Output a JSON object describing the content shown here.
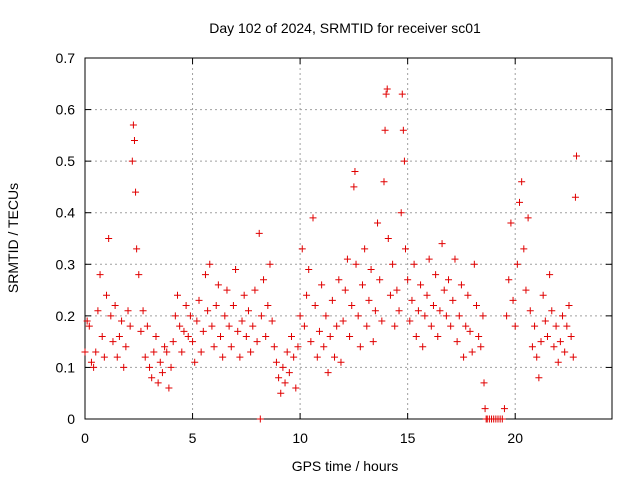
{
  "chart_data": {
    "type": "scatter",
    "title": "Day 102 of 2024, SRMTID for receiver sc01",
    "xlabel": "GPS time / hours",
    "ylabel": "SRMTID / TECUs",
    "xlim": [
      0,
      24.5
    ],
    "ylim": [
      0,
      0.7
    ],
    "xticks": [
      0,
      5,
      10,
      15,
      20
    ],
    "xtick_labels": [
      "0",
      "5",
      "10",
      "15",
      "20"
    ],
    "yticks": [
      0,
      0.1,
      0.2,
      0.3,
      0.4,
      0.5,
      0.6,
      0.7
    ],
    "ytick_labels": [
      "0",
      "0.1",
      "0.2",
      "0.3",
      "0.4",
      "0.5",
      "0.6",
      "0.7"
    ],
    "grid": true,
    "marker": "+",
    "series": [
      {
        "name": "SRMTID",
        "color": "#e00000",
        "points": [
          [
            0.0,
            0.13
          ],
          [
            0.1,
            0.19
          ],
          [
            0.2,
            0.18
          ],
          [
            0.3,
            0.11
          ],
          [
            0.4,
            0.1
          ],
          [
            0.5,
            0.13
          ],
          [
            0.6,
            0.21
          ],
          [
            0.7,
            0.28
          ],
          [
            0.8,
            0.16
          ],
          [
            0.9,
            0.12
          ],
          [
            1.0,
            0.24
          ],
          [
            1.1,
            0.35
          ],
          [
            1.2,
            0.2
          ],
          [
            1.3,
            0.15
          ],
          [
            1.4,
            0.22
          ],
          [
            1.5,
            0.12
          ],
          [
            1.6,
            0.16
          ],
          [
            1.7,
            0.19
          ],
          [
            1.8,
            0.1
          ],
          [
            1.9,
            0.14
          ],
          [
            2.0,
            0.21
          ],
          [
            2.1,
            0.18
          ],
          [
            2.2,
            0.5
          ],
          [
            2.25,
            0.57
          ],
          [
            2.3,
            0.54
          ],
          [
            2.35,
            0.44
          ],
          [
            2.4,
            0.33
          ],
          [
            2.5,
            0.28
          ],
          [
            2.6,
            0.17
          ],
          [
            2.7,
            0.21
          ],
          [
            2.8,
            0.12
          ],
          [
            2.9,
            0.18
          ],
          [
            3.0,
            0.1
          ],
          [
            3.1,
            0.08
          ],
          [
            3.2,
            0.13
          ],
          [
            3.3,
            0.16
          ],
          [
            3.4,
            0.07
          ],
          [
            3.5,
            0.11
          ],
          [
            3.6,
            0.09
          ],
          [
            3.7,
            0.14
          ],
          [
            3.8,
            0.13
          ],
          [
            3.9,
            0.06
          ],
          [
            4.0,
            0.1
          ],
          [
            4.1,
            0.15
          ],
          [
            4.2,
            0.2
          ],
          [
            4.3,
            0.24
          ],
          [
            4.4,
            0.18
          ],
          [
            4.5,
            0.13
          ],
          [
            4.6,
            0.17
          ],
          [
            4.7,
            0.22
          ],
          [
            4.8,
            0.16
          ],
          [
            4.9,
            0.2
          ],
          [
            5.0,
            0.15
          ],
          [
            5.1,
            0.11
          ],
          [
            5.2,
            0.19
          ],
          [
            5.3,
            0.23
          ],
          [
            5.4,
            0.13
          ],
          [
            5.5,
            0.17
          ],
          [
            5.6,
            0.28
          ],
          [
            5.7,
            0.21
          ],
          [
            5.8,
            0.3
          ],
          [
            5.9,
            0.18
          ],
          [
            6.0,
            0.14
          ],
          [
            6.1,
            0.22
          ],
          [
            6.2,
            0.26
          ],
          [
            6.3,
            0.16
          ],
          [
            6.4,
            0.12
          ],
          [
            6.5,
            0.2
          ],
          [
            6.6,
            0.25
          ],
          [
            6.7,
            0.18
          ],
          [
            6.8,
            0.14
          ],
          [
            6.9,
            0.22
          ],
          [
            7.0,
            0.29
          ],
          [
            7.1,
            0.17
          ],
          [
            7.2,
            0.12
          ],
          [
            7.3,
            0.19
          ],
          [
            7.4,
            0.24
          ],
          [
            7.5,
            0.16
          ],
          [
            7.6,
            0.21
          ],
          [
            7.7,
            0.13
          ],
          [
            7.8,
            0.18
          ],
          [
            7.9,
            0.25
          ],
          [
            8.0,
            0.15
          ],
          [
            8.1,
            0.36
          ],
          [
            8.15,
            0.0
          ],
          [
            8.2,
            0.2
          ],
          [
            8.3,
            0.27
          ],
          [
            8.4,
            0.16
          ],
          [
            8.5,
            0.22
          ],
          [
            8.6,
            0.3
          ],
          [
            8.7,
            0.19
          ],
          [
            8.8,
            0.14
          ],
          [
            8.9,
            0.11
          ],
          [
            9.0,
            0.08
          ],
          [
            9.1,
            0.05
          ],
          [
            9.2,
            0.1
          ],
          [
            9.3,
            0.07
          ],
          [
            9.4,
            0.13
          ],
          [
            9.5,
            0.09
          ],
          [
            9.6,
            0.16
          ],
          [
            9.7,
            0.12
          ],
          [
            9.8,
            0.06
          ],
          [
            9.9,
            0.14
          ],
          [
            10.0,
            0.2
          ],
          [
            10.1,
            0.33
          ],
          [
            10.2,
            0.18
          ],
          [
            10.3,
            0.24
          ],
          [
            10.4,
            0.29
          ],
          [
            10.5,
            0.15
          ],
          [
            10.6,
            0.39
          ],
          [
            10.7,
            0.22
          ],
          [
            10.8,
            0.12
          ],
          [
            10.9,
            0.17
          ],
          [
            11.0,
            0.26
          ],
          [
            11.1,
            0.14
          ],
          [
            11.2,
            0.2
          ],
          [
            11.3,
            0.09
          ],
          [
            11.4,
            0.16
          ],
          [
            11.5,
            0.23
          ],
          [
            11.6,
            0.12
          ],
          [
            11.7,
            0.18
          ],
          [
            11.8,
            0.27
          ],
          [
            11.9,
            0.11
          ],
          [
            12.0,
            0.19
          ],
          [
            12.1,
            0.25
          ],
          [
            12.2,
            0.31
          ],
          [
            12.3,
            0.16
          ],
          [
            12.4,
            0.22
          ],
          [
            12.5,
            0.45
          ],
          [
            12.55,
            0.48
          ],
          [
            12.6,
            0.3
          ],
          [
            12.7,
            0.2
          ],
          [
            12.8,
            0.14
          ],
          [
            12.9,
            0.26
          ],
          [
            13.0,
            0.33
          ],
          [
            13.1,
            0.18
          ],
          [
            13.2,
            0.23
          ],
          [
            13.3,
            0.29
          ],
          [
            13.4,
            0.15
          ],
          [
            13.5,
            0.21
          ],
          [
            13.6,
            0.38
          ],
          [
            13.7,
            0.27
          ],
          [
            13.8,
            0.19
          ],
          [
            13.9,
            0.46
          ],
          [
            13.95,
            0.56
          ],
          [
            14.0,
            0.63
          ],
          [
            14.05,
            0.64
          ],
          [
            14.1,
            0.35
          ],
          [
            14.2,
            0.24
          ],
          [
            14.3,
            0.3
          ],
          [
            14.4,
            0.18
          ],
          [
            14.5,
            0.25
          ],
          [
            14.6,
            0.21
          ],
          [
            14.7,
            0.4
          ],
          [
            14.75,
            0.63
          ],
          [
            14.8,
            0.56
          ],
          [
            14.85,
            0.5
          ],
          [
            14.9,
            0.33
          ],
          [
            15.0,
            0.27
          ],
          [
            15.1,
            0.19
          ],
          [
            15.2,
            0.23
          ],
          [
            15.3,
            0.3
          ],
          [
            15.4,
            0.16
          ],
          [
            15.5,
            0.21
          ],
          [
            15.6,
            0.26
          ],
          [
            15.7,
            0.14
          ],
          [
            15.8,
            0.2
          ],
          [
            15.9,
            0.24
          ],
          [
            16.0,
            0.31
          ],
          [
            16.1,
            0.18
          ],
          [
            16.2,
            0.22
          ],
          [
            16.3,
            0.28
          ],
          [
            16.4,
            0.16
          ],
          [
            16.5,
            0.21
          ],
          [
            16.6,
            0.34
          ],
          [
            16.7,
            0.25
          ],
          [
            16.8,
            0.2
          ],
          [
            16.9,
            0.27
          ],
          [
            17.0,
            0.18
          ],
          [
            17.1,
            0.23
          ],
          [
            17.2,
            0.31
          ],
          [
            17.3,
            0.15
          ],
          [
            17.4,
            0.2
          ],
          [
            17.5,
            0.26
          ],
          [
            17.6,
            0.12
          ],
          [
            17.7,
            0.18
          ],
          [
            17.8,
            0.24
          ],
          [
            17.9,
            0.17
          ],
          [
            18.0,
            0.13
          ],
          [
            18.1,
            0.3
          ],
          [
            18.2,
            0.22
          ],
          [
            18.3,
            0.16
          ],
          [
            18.4,
            0.14
          ],
          [
            18.5,
            0.2
          ],
          [
            18.55,
            0.07
          ],
          [
            18.6,
            0.02
          ],
          [
            18.65,
            0.0
          ],
          [
            18.7,
            0.0
          ],
          [
            18.8,
            0.0
          ],
          [
            18.9,
            0.0
          ],
          [
            19.0,
            0.0
          ],
          [
            19.1,
            0.0
          ],
          [
            19.2,
            0.0
          ],
          [
            19.3,
            0.0
          ],
          [
            19.4,
            0.0
          ],
          [
            19.5,
            0.02
          ],
          [
            19.6,
            0.2
          ],
          [
            19.7,
            0.27
          ],
          [
            19.8,
            0.38
          ],
          [
            19.9,
            0.23
          ],
          [
            20.0,
            0.18
          ],
          [
            20.1,
            0.3
          ],
          [
            20.2,
            0.42
          ],
          [
            20.3,
            0.46
          ],
          [
            20.4,
            0.33
          ],
          [
            20.5,
            0.25
          ],
          [
            20.6,
            0.39
          ],
          [
            20.7,
            0.21
          ],
          [
            20.8,
            0.14
          ],
          [
            20.9,
            0.18
          ],
          [
            21.0,
            0.12
          ],
          [
            21.1,
            0.08
          ],
          [
            21.2,
            0.15
          ],
          [
            21.3,
            0.24
          ],
          [
            21.4,
            0.19
          ],
          [
            21.5,
            0.16
          ],
          [
            21.6,
            0.28
          ],
          [
            21.7,
            0.21
          ],
          [
            21.8,
            0.14
          ],
          [
            21.9,
            0.18
          ],
          [
            22.0,
            0.11
          ],
          [
            22.1,
            0.15
          ],
          [
            22.2,
            0.2
          ],
          [
            22.3,
            0.13
          ],
          [
            22.4,
            0.18
          ],
          [
            22.5,
            0.22
          ],
          [
            22.6,
            0.16
          ],
          [
            22.7,
            0.12
          ],
          [
            22.8,
            0.43
          ],
          [
            22.85,
            0.51
          ]
        ]
      }
    ]
  }
}
